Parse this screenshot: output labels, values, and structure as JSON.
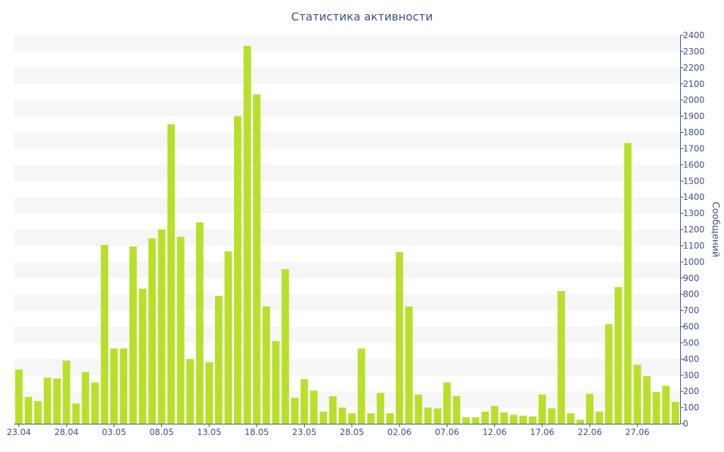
{
  "chart_data": {
    "type": "bar",
    "title": "Статистика активности",
    "xlabel": "",
    "ylabel": "Сообщений",
    "ylim": [
      0,
      2400
    ],
    "y_ticks": [
      0,
      100,
      200,
      300,
      400,
      500,
      600,
      700,
      800,
      900,
      1000,
      1100,
      1200,
      1300,
      1400,
      1500,
      1600,
      1700,
      1800,
      1900,
      2000,
      2100,
      2200,
      2300,
      2400
    ],
    "y_axis_side": "right",
    "grid": "alternating horizontal bands",
    "bar_color": "#b8e02b",
    "band_color": "#f6f6f6",
    "axis_text_color": "#3e4f8c",
    "categories": [
      "23.04",
      "24.04",
      "25.04",
      "26.04",
      "27.04",
      "28.04",
      "29.04",
      "30.04",
      "01.05",
      "02.05",
      "03.05",
      "04.05",
      "05.05",
      "06.05",
      "07.05",
      "08.05",
      "09.05",
      "10.05",
      "11.05",
      "12.05",
      "13.05",
      "14.05",
      "15.05",
      "16.05",
      "17.05",
      "18.05",
      "19.05",
      "20.05",
      "21.05",
      "22.05",
      "23.05",
      "24.05",
      "25.05",
      "26.05",
      "27.05",
      "28.05",
      "29.05",
      "30.05",
      "31.05",
      "01.06",
      "02.06",
      "03.06",
      "04.06",
      "05.06",
      "06.06",
      "07.06",
      "08.06",
      "09.06",
      "10.06",
      "11.06",
      "12.06",
      "13.06",
      "14.06",
      "15.06",
      "16.06",
      "17.06",
      "18.06",
      "19.06",
      "20.06",
      "21.06",
      "22.06",
      "23.06",
      "24.06",
      "25.06",
      "26.06",
      "27.06",
      "28.06",
      "29.06",
      "30.06",
      "01.07"
    ],
    "x_tick_labels": [
      "23.04",
      "28.04",
      "03.05",
      "08.05",
      "13.05",
      "18.05",
      "23.05",
      "28.05",
      "02.06",
      "07.06",
      "12.06",
      "17.06",
      "22.06",
      "27.06"
    ],
    "values": [
      335,
      165,
      140,
      285,
      280,
      390,
      125,
      320,
      255,
      1105,
      465,
      465,
      1095,
      835,
      1145,
      1200,
      1850,
      1155,
      400,
      1245,
      380,
      790,
      1065,
      1900,
      2335,
      2035,
      725,
      510,
      955,
      160,
      275,
      205,
      75,
      170,
      100,
      65,
      465,
      65,
      190,
      65,
      1060,
      725,
      180,
      100,
      95,
      255,
      170,
      40,
      40,
      75,
      110,
      70,
      55,
      50,
      45,
      180,
      95,
      820,
      65,
      25,
      185,
      75,
      615,
      845,
      1735,
      365,
      295,
      195,
      235,
      135
    ]
  }
}
